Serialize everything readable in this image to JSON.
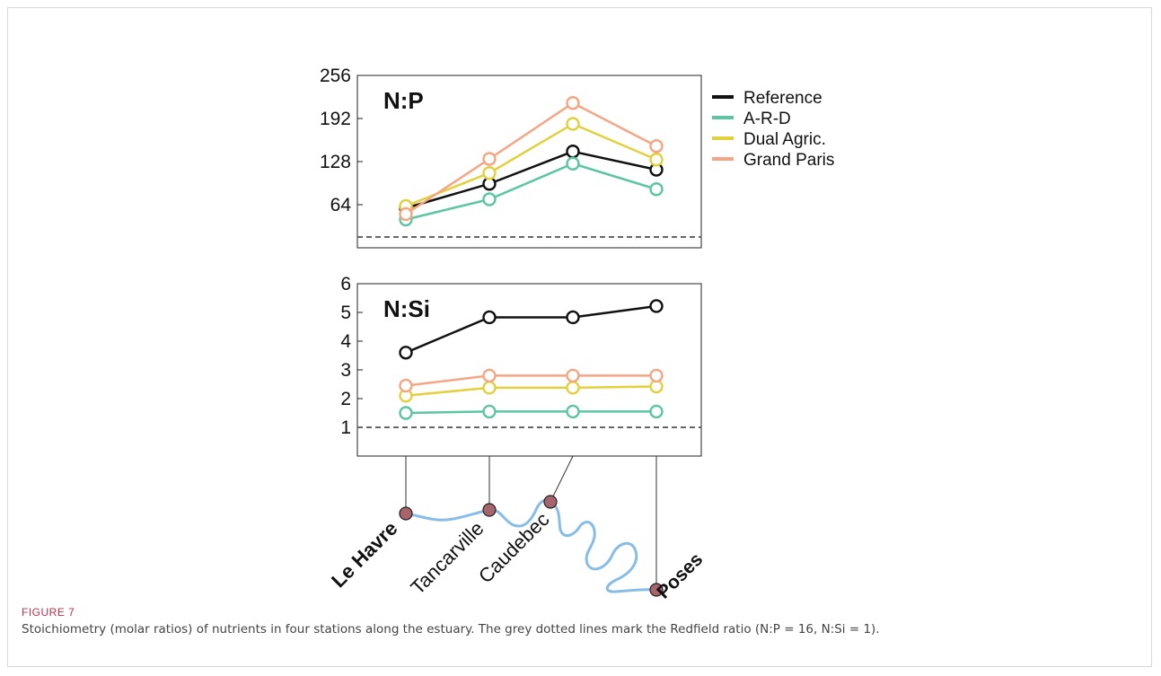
{
  "figure": {
    "label": "FIGURE 7",
    "caption": "Stoichiometry (molar ratios) of nutrients in four stations along the estuary. The grey dotted lines mark the Redfield ratio (N:P = 16, N:Si = 1)."
  },
  "colors": {
    "Reference": "#111111",
    "A-R-D": "#5cc6a3",
    "Dual Agric.": "#e2d03c",
    "Grand Paris": "#f6a582",
    "redfield_line": "#666666",
    "river": "#86bde8",
    "station_marker": "#a8646c"
  },
  "legend": {
    "placement": "right"
  },
  "stations": [
    {
      "name": "Le Havre",
      "bold": true
    },
    {
      "name": "Tancarville",
      "bold": false
    },
    {
      "name": "Caudebec",
      "bold": false
    },
    {
      "name": "Poses",
      "bold": true
    }
  ],
  "chart_data": [
    {
      "type": "line",
      "title": "N:P",
      "categories": [
        "Le Havre",
        "Tancarville",
        "Caudebec",
        "Poses"
      ],
      "ylim": [
        0,
        256
      ],
      "yticks": [
        64,
        128,
        192,
        256
      ],
      "reference_line": 16,
      "series": [
        {
          "name": "Reference",
          "values": [
            59,
            95,
            143,
            116
          ]
        },
        {
          "name": "A-R-D",
          "values": [
            42,
            72,
            125,
            87
          ]
        },
        {
          "name": "Dual Agric.",
          "values": [
            62,
            111,
            184,
            131
          ]
        },
        {
          "name": "Grand Paris",
          "values": [
            50,
            132,
            215,
            151
          ]
        }
      ]
    },
    {
      "type": "line",
      "title": "N:Si",
      "categories": [
        "Le Havre",
        "Tancarville",
        "Caudebec",
        "Poses"
      ],
      "ylim": [
        0,
        6
      ],
      "yticks": [
        1,
        2,
        3,
        4,
        5,
        6
      ],
      "reference_line": 1,
      "series": [
        {
          "name": "Reference",
          "values": [
            3.6,
            4.83,
            4.83,
            5.22
          ]
        },
        {
          "name": "A-R-D",
          "values": [
            1.5,
            1.55,
            1.55,
            1.55
          ]
        },
        {
          "name": "Dual Agric.",
          "values": [
            2.1,
            2.38,
            2.38,
            2.42
          ]
        },
        {
          "name": "Grand Paris",
          "values": [
            2.45,
            2.8,
            2.8,
            2.8
          ]
        }
      ]
    }
  ]
}
